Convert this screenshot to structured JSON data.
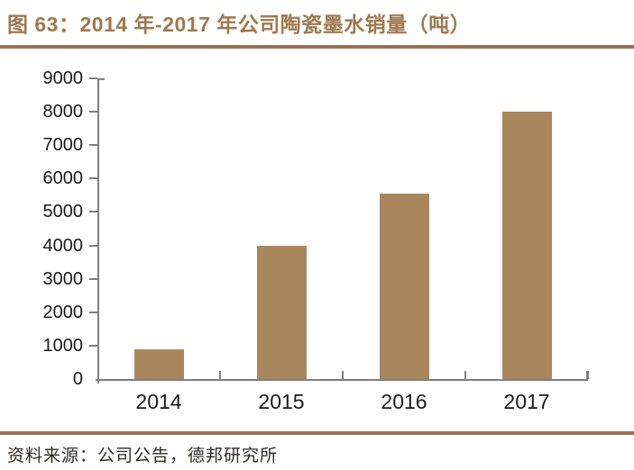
{
  "page": {
    "title": "图 63：2014 年-2017 年公司陶瓷墨水销量（吨）",
    "source_note": "资料来源：公司公告，德邦研究所"
  },
  "colors": {
    "title_brown": "#A0784E",
    "rule_brown": "#9B7053",
    "bar_brown": "#A9865B",
    "axis_gray": "#7F7F7F",
    "text_black": "#1A1A1A"
  },
  "chart_data": {
    "type": "bar",
    "title": "2014年-2017年公司陶瓷墨水销量（吨）",
    "categories": [
      "2014",
      "2015",
      "2016",
      "2017"
    ],
    "values": [
      900,
      4000,
      5560,
      8000
    ],
    "xlabel": "",
    "ylabel": "",
    "ylim": [
      0,
      9000
    ],
    "ytick_step": 1000,
    "grid": false,
    "legend_position": "none",
    "bar_color": "#A9865B"
  }
}
